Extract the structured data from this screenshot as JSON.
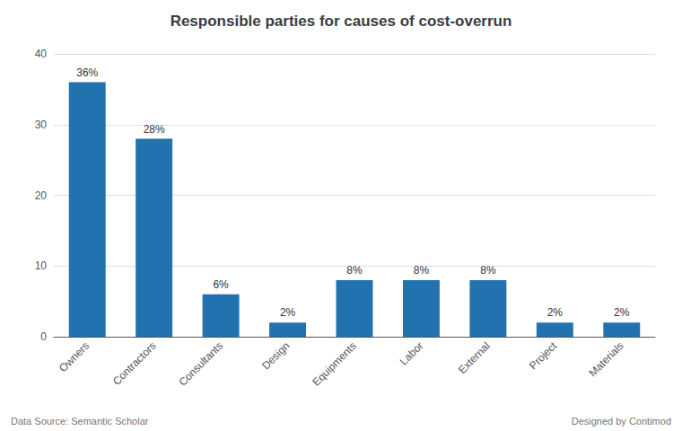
{
  "chart_data": {
    "type": "bar",
    "title": "Responsible parties for causes of cost-overrun",
    "categories": [
      "Owners",
      "Contractors",
      "Consultants",
      "Design",
      "Equipments",
      "Labor",
      "External",
      "Project",
      "Materials"
    ],
    "values": [
      36,
      28,
      6,
      2,
      8,
      8,
      8,
      2,
      2
    ],
    "value_labels": [
      "36%",
      "28%",
      "6%",
      "2%",
      "8%",
      "8%",
      "8%",
      "2%",
      "2%"
    ],
    "data_labels": true,
    "color": "#2272B0",
    "ylim": [
      0,
      40
    ],
    "yticks": [
      0,
      10,
      20,
      30,
      40
    ],
    "grid": true,
    "annotations": [
      "Data Source: Semantic Scholar",
      "Designed by Contimod"
    ]
  }
}
